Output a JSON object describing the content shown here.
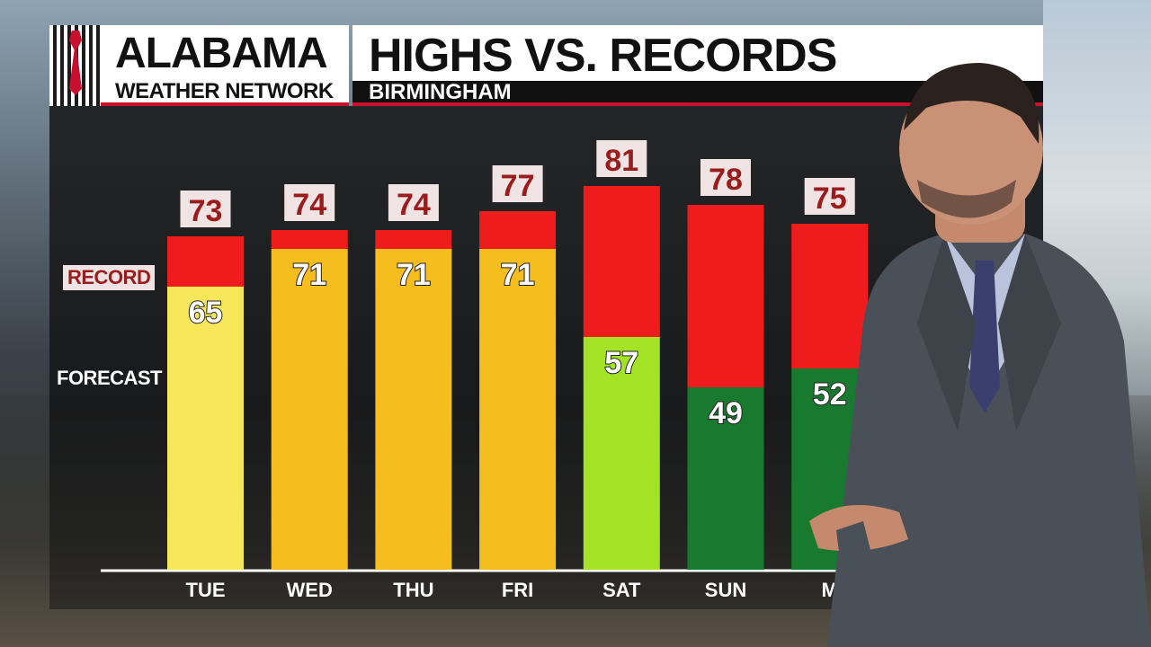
{
  "header": {
    "brand_top": "ALABAMA",
    "brand_bottom": "WEATHER NETWORK",
    "title": "HIGHS VS. RECORDS",
    "subtitle": "BIRMINGHAM"
  },
  "legend": {
    "record": "RECORD",
    "forecast": "FORECAST"
  },
  "colors": {
    "record": "#ee1c1c",
    "forecast_yellow": "#f5e65a",
    "forecast_orange": "#f5bd1e",
    "forecast_lime": "#a4e225",
    "forecast_green": "#177a2e",
    "brand_red": "#c8102e"
  },
  "chart_data": {
    "type": "bar",
    "categories": [
      "TUE",
      "WED",
      "THU",
      "FRI",
      "SAT",
      "SUN",
      "MON"
    ],
    "series": [
      {
        "name": "RECORD",
        "values": [
          73,
          74,
          74,
          77,
          81,
          78,
          75
        ]
      },
      {
        "name": "FORECAST",
        "values": [
          65,
          71,
          71,
          71,
          57,
          49,
          52
        ]
      }
    ],
    "forecast_colors": [
      "#f5e65a",
      "#f5bd1e",
      "#f5bd1e",
      "#f5bd1e",
      "#a4e225",
      "#177a2e",
      "#177a2e"
    ],
    "category_labels_visible": [
      "TUE",
      "WED",
      "THU",
      "FRI",
      "SAT",
      "SUN",
      "M"
    ],
    "title": "HIGHS VS. RECORDS",
    "ylim": [
      20,
      84
    ]
  }
}
